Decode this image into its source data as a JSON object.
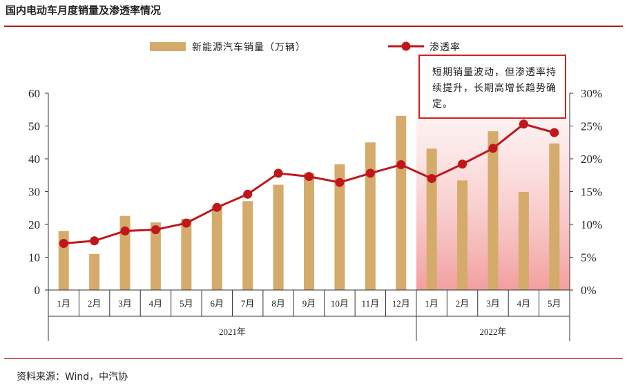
{
  "header": {
    "title": "国内电动车月度销量及渗透率情况"
  },
  "footer": {
    "source": "资料来源：Wind，中汽协"
  },
  "annotation": {
    "text": "短期销量波动，但渗透率持续提升，长期高增长趋势确定。"
  },
  "colors": {
    "bar": "#d4ab6a",
    "line": "#c0161c",
    "accent": "#b01a1a",
    "highlight": "#f08080"
  },
  "chart_data": {
    "type": "bar",
    "categories": [
      "1月",
      "2月",
      "3月",
      "4月",
      "5月",
      "6月",
      "7月",
      "8月",
      "9月",
      "10月",
      "11月",
      "12月",
      "1月",
      "2月",
      "3月",
      "4月",
      "5月"
    ],
    "year_groups": [
      {
        "label": "2021年",
        "count": 12
      },
      {
        "label": "2022年",
        "count": 5
      }
    ],
    "series": [
      {
        "name": "新能源汽车销量（万辆）",
        "type": "bar",
        "axis": "left",
        "values": [
          18.0,
          11.0,
          22.6,
          20.6,
          21.7,
          25.6,
          27.1,
          32.1,
          35.7,
          38.3,
          45.0,
          53.1,
          43.1,
          33.4,
          48.4,
          29.9,
          44.7
        ]
      },
      {
        "name": "渗透率",
        "type": "line",
        "axis": "right",
        "unit": "%",
        "values": [
          7.1,
          7.5,
          9.0,
          9.2,
          10.2,
          12.6,
          14.6,
          17.8,
          17.3,
          16.4,
          17.8,
          19.1,
          17.0,
          19.2,
          21.6,
          25.3,
          24.0
        ]
      }
    ],
    "y_left": {
      "ylim": [
        0,
        60
      ],
      "ticks": [
        "0",
        "10",
        "20",
        "30",
        "40",
        "50",
        "60"
      ]
    },
    "y_right": {
      "ylim": [
        0,
        30
      ],
      "ticks": [
        "0%",
        "5%",
        "10%",
        "15%",
        "20%",
        "25%",
        "30%"
      ]
    },
    "legend_position": "top",
    "highlight_range": [
      "1月",
      "5月"
    ],
    "grid": false
  }
}
